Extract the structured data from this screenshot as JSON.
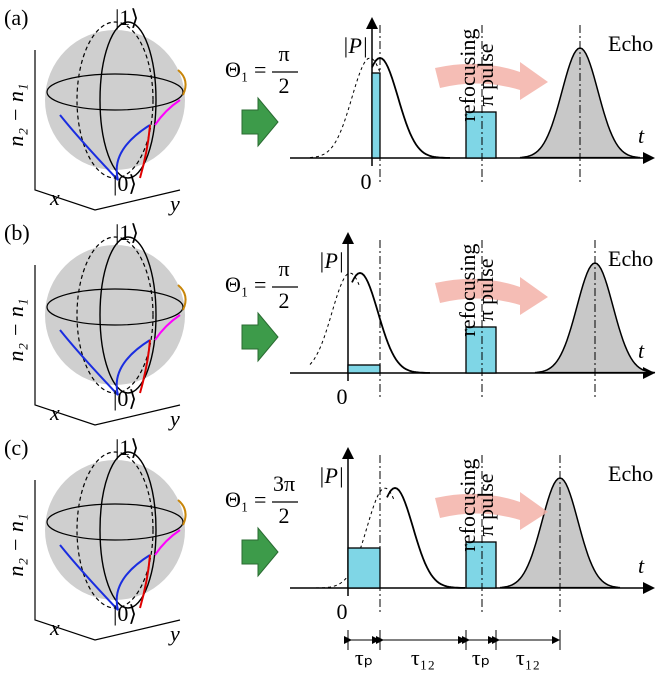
{
  "panels": [
    {
      "label": "(a)",
      "state1": "|1⟩",
      "state0": "|0⟩",
      "axis_vertical": "n₂ − n₁",
      "axis_x": "x",
      "axis_y": "y",
      "theta_symbol": "Θ₁ =",
      "theta_numerator": "π",
      "theta_denominator": "2",
      "p_axis": "|P|",
      "t_axis": "t",
      "zero": "0",
      "echo": "Echo",
      "refocusing": "refocusing",
      "pi_pulse": "π pulse"
    },
    {
      "label": "(b)",
      "state1": "|1⟩",
      "state0": "|0⟩",
      "axis_vertical": "n₂ − n₁",
      "axis_x": "x",
      "axis_y": "y",
      "theta_symbol": "Θ₁ =",
      "theta_numerator": "π",
      "theta_denominator": "2",
      "p_axis": "|P|",
      "t_axis": "t",
      "zero": "0",
      "echo": "Echo",
      "refocusing": "refocusing",
      "pi_pulse": "π pulse"
    },
    {
      "label": "(c)",
      "state1": "|1⟩",
      "state0": "|0⟩",
      "axis_vertical": "n₂ − n₁",
      "axis_x": "x",
      "axis_y": "y",
      "theta_symbol": "Θ₁ =",
      "theta_numerator": "3π",
      "theta_denominator": "2",
      "p_axis": "|P|",
      "t_axis": "t",
      "zero": "0",
      "echo": "Echo",
      "refocusing": "refocusing",
      "pi_pulse": "π pulse"
    }
  ],
  "timeline": [
    "τₚ",
    "τ₁₂",
    "τₚ",
    "τ₁₂"
  ]
}
